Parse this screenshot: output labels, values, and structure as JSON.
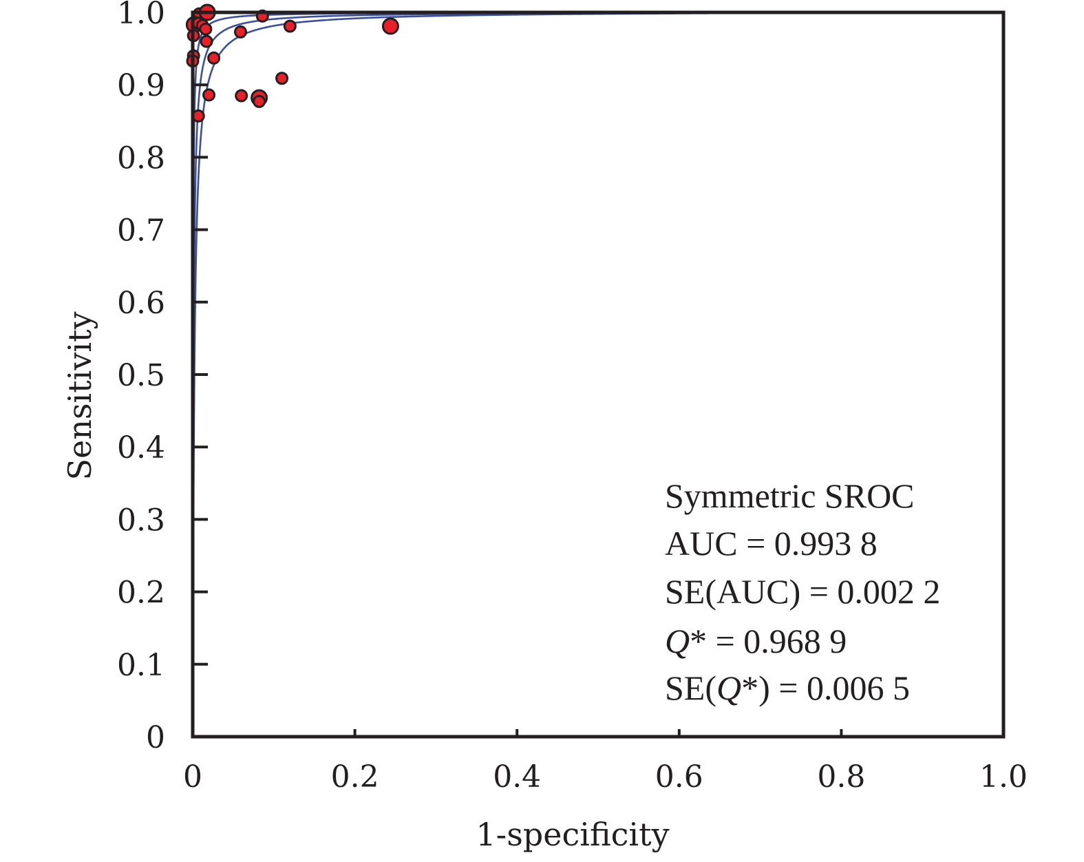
{
  "chart_data": {
    "type": "scatter",
    "xlabel": "1-specificity",
    "ylabel": "Sensitivity",
    "xlim": [
      0,
      1.0
    ],
    "ylim": [
      0,
      1.0
    ],
    "x_ticks": [
      "0",
      "0.2",
      "0.4",
      "0.6",
      "0.8",
      "1.0"
    ],
    "y_ticks": [
      "0",
      "0.1",
      "0.2",
      "0.3",
      "0.4",
      "0.5",
      "0.6",
      "0.7",
      "0.8",
      "0.9",
      "1.0"
    ],
    "grid": false,
    "points": [
      {
        "x": 0.008,
        "y": 0.998,
        "size": 1
      },
      {
        "x": 0.018,
        "y": 1.0,
        "size": 2
      },
      {
        "x": 0.002,
        "y": 0.983,
        "size": 2
      },
      {
        "x": 0.007,
        "y": 0.985,
        "size": 1
      },
      {
        "x": 0.012,
        "y": 0.982,
        "size": 1
      },
      {
        "x": 0.016,
        "y": 0.977,
        "size": 1
      },
      {
        "x": 0.001,
        "y": 0.968,
        "size": 1
      },
      {
        "x": 0.017,
        "y": 0.96,
        "size": 1
      },
      {
        "x": 0.001,
        "y": 0.94,
        "size": 1
      },
      {
        "x": 0.0,
        "y": 0.933,
        "size": 1
      },
      {
        "x": 0.026,
        "y": 0.937,
        "size": 1
      },
      {
        "x": 0.059,
        "y": 0.973,
        "size": 1
      },
      {
        "x": 0.086,
        "y": 0.995,
        "size": 1
      },
      {
        "x": 0.12,
        "y": 0.981,
        "size": 1
      },
      {
        "x": 0.244,
        "y": 0.981,
        "size": 2
      },
      {
        "x": 0.02,
        "y": 0.886,
        "size": 1
      },
      {
        "x": 0.06,
        "y": 0.885,
        "size": 1
      },
      {
        "x": 0.082,
        "y": 0.882,
        "size": 2
      },
      {
        "x": 0.082,
        "y": 0.877,
        "size": 1
      },
      {
        "x": 0.11,
        "y": 0.909,
        "size": 1
      },
      {
        "x": 0.007,
        "y": 0.857,
        "size": 1
      }
    ],
    "curves": [
      {
        "role": "sroc",
        "q_star": 0.9689
      },
      {
        "role": "ci-upper",
        "q_star": 0.9816
      },
      {
        "role": "ci-lower",
        "q_star": 0.9562
      }
    ],
    "curve_color": "#3b4fa0",
    "point_color": "#e8202a",
    "annotation_position": "bottom-right",
    "annotation": [
      {
        "text": "Symmetric SROC"
      },
      {
        "text": "AUC = 0.993 8"
      },
      {
        "text": "SE(AUC) = 0.002 2"
      },
      {
        "pre": "",
        "q": "Q",
        "post": "* = 0.968 9"
      },
      {
        "pre": "SE(",
        "q": "Q",
        "post": "*) = 0.006 5"
      }
    ]
  }
}
